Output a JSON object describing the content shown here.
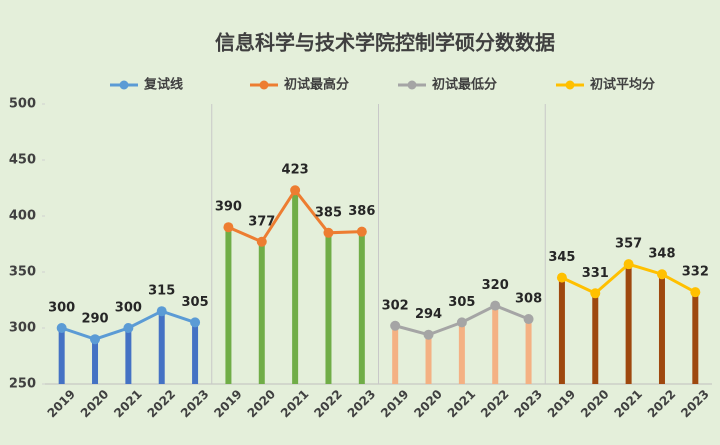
{
  "chart_data": {
    "type": "bar-line",
    "title": "信息科学与技术学院控制学硕分数数据",
    "categories": [
      "2019",
      "2020",
      "2021",
      "2022",
      "2023",
      "2019",
      "2020",
      "2021",
      "2022",
      "2023",
      "2019",
      "2020",
      "2021",
      "2022",
      "2023",
      "2019",
      "2020",
      "2021",
      "2022",
      "2023"
    ],
    "series": [
      {
        "name": "复试线",
        "color": "#5b9bd5",
        "bar_color": "#4472c4",
        "values": [
          300,
          290,
          300,
          315,
          305,
          null,
          null,
          null,
          null,
          null,
          null,
          null,
          null,
          null,
          null,
          null,
          null,
          null,
          null,
          null
        ]
      },
      {
        "name": "初试最高分",
        "color": "#ed7d31",
        "bar_color": "#70ad47",
        "values": [
          null,
          null,
          null,
          null,
          null,
          390,
          377,
          423,
          385,
          386,
          null,
          null,
          null,
          null,
          null,
          null,
          null,
          null,
          null,
          null
        ]
      },
      {
        "name": "初试最低分",
        "color": "#a5a5a5",
        "bar_color": "#f4b183",
        "values": [
          null,
          null,
          null,
          null,
          null,
          null,
          null,
          null,
          null,
          null,
          302,
          294,
          305,
          320,
          308,
          null,
          null,
          null,
          null,
          null
        ]
      },
      {
        "name": "初试平均分",
        "color": "#ffc000",
        "bar_color": "#9e480e",
        "values": [
          null,
          null,
          null,
          null,
          null,
          null,
          null,
          null,
          null,
          null,
          null,
          null,
          null,
          null,
          null,
          345,
          331,
          357,
          348,
          332
        ]
      }
    ],
    "ylim": [
      250,
      500
    ],
    "yticks": [
      250,
      300,
      350,
      400,
      450,
      500
    ],
    "grid": false,
    "legend": "top"
  }
}
